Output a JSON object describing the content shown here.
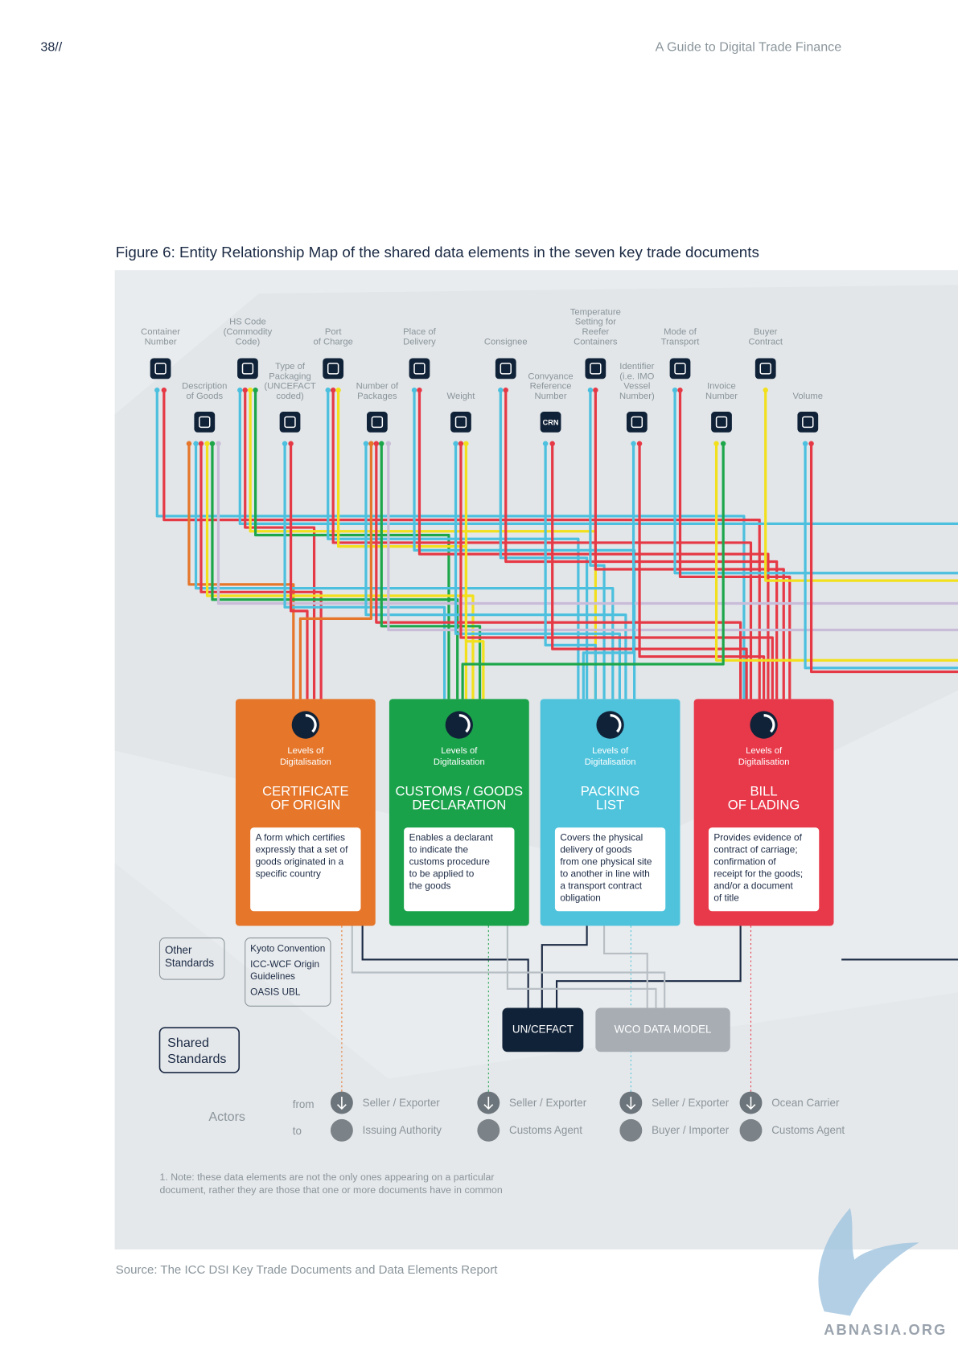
{
  "header": {
    "page_number": "38//",
    "title": "A Guide to Digital Trade Finance"
  },
  "figure_title": "Figure 6: Entity Relationship Map of the shared data elements in the seven key trade documents",
  "data_elements": [
    {
      "label": [
        "Container",
        "Number"
      ]
    },
    {
      "label": [
        "HS Code",
        "(Commodity",
        "Code)"
      ]
    },
    {
      "label": [
        "Port",
        "of Charge"
      ]
    },
    {
      "label": [
        "Place of",
        "Delivery"
      ]
    },
    {
      "label": [
        "Consignee"
      ]
    },
    {
      "label": [
        "Temperature",
        "Setting for",
        "Reefer",
        "Containers"
      ]
    },
    {
      "label": [
        "Mode of",
        "Transport"
      ]
    },
    {
      "label": [
        "Buyer",
        "Contract"
      ]
    },
    {
      "label": [
        "Description",
        "of Goods"
      ]
    },
    {
      "label": [
        "Type of",
        "Packaging",
        "(UNCEFACT",
        "coded)"
      ]
    },
    {
      "label": [
        "Number of",
        "Packages"
      ]
    },
    {
      "label": [
        "Weight"
      ]
    },
    {
      "label": [
        "Convyance",
        "Reference",
        "Number"
      ],
      "icon_text": "CRN"
    },
    {
      "label": [
        "Identifier",
        "(i.e. IMO",
        "Vessel",
        "Number)"
      ]
    },
    {
      "label": [
        "Invoice",
        "Number"
      ]
    },
    {
      "label": [
        "Volume"
      ]
    }
  ],
  "documents": [
    {
      "color": "#e5762a",
      "levels_label": [
        "Levels of",
        "Digitalisation"
      ],
      "title": [
        "CERTIFICATE",
        "OF ORIGIN"
      ],
      "description": [
        "A form which certifies",
        "expressly that a set of",
        "goods originated in a",
        "specific country"
      ],
      "actors": {
        "from": "Seller / Exporter",
        "to": "Issuing Authority"
      }
    },
    {
      "color": "#1aa24a",
      "levels_label": [
        "Levels of",
        "Digitalisation"
      ],
      "title": [
        "CUSTOMS / GOODS",
        "DECLARATION"
      ],
      "description": [
        "Enables a declarant",
        "to indicate the",
        "customs procedure",
        "to be applied to",
        "the goods"
      ],
      "actors": {
        "from": "Seller / Exporter",
        "to": "Customs Agent"
      }
    },
    {
      "color": "#4fc3dc",
      "levels_label": [
        "Levels of",
        "Digitalisation"
      ],
      "title": [
        "PACKING",
        "LIST"
      ],
      "description": [
        "Covers the physical",
        "delivery of goods",
        "from one physical site",
        "to another in line with",
        "a transport contract",
        "obligation"
      ],
      "actors": {
        "from": "Seller / Exporter",
        "to": "Buyer / Importer"
      }
    },
    {
      "color": "#e8394a",
      "levels_label": [
        "Levels of",
        "Digitalisation"
      ],
      "title": [
        "BILL",
        "OF LADING"
      ],
      "description": [
        "Provides evidence of",
        "contract of carriage;",
        "confirmation of",
        "receipt for the goods;",
        "and/or a document",
        "of title"
      ],
      "actors": {
        "from": "Ocean Carrier",
        "to": "Customs Agent"
      }
    }
  ],
  "other_standards": {
    "label": [
      "Other",
      "Standards"
    ],
    "items": [
      [
        "Kyoto Convention"
      ],
      [
        "ICC-WCF Origin",
        "Guidelines"
      ],
      [
        "OASIS UBL"
      ]
    ]
  },
  "shared_standards": {
    "label": [
      "Shared",
      "Standards"
    ],
    "items": [
      "UN/CEFACT",
      "WCO DATA MODEL"
    ]
  },
  "actors": {
    "label": "Actors",
    "from": "from",
    "to": "to"
  },
  "note": [
    "1. Note: these data elements are not the only ones appearing on a particular",
    "document, rather they are those that one or more documents have in common"
  ],
  "source": "Source: The ICC DSI Key Trade Documents and Data Elements Report",
  "watermark": "ABNASIA.ORG"
}
